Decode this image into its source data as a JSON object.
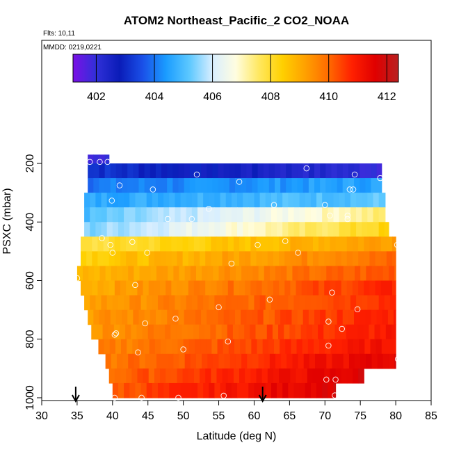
{
  "chart_data": {
    "type": "heatmap",
    "title": "ATOM2 Northeast_Pacific_2 CO2_NOAA",
    "flights_label": "Flts: 10,11",
    "date_label": "MMDD: 0219,0221",
    "xlabel": "Latitude (deg N)",
    "ylabel": "PSXC (mbar)",
    "xlim": [
      30,
      85
    ],
    "ylim": [
      1010,
      0
    ],
    "x_ticks": [
      30,
      35,
      40,
      45,
      50,
      55,
      60,
      65,
      70,
      75,
      80,
      85
    ],
    "y_ticks": [
      200,
      400,
      600,
      800,
      1000
    ],
    "colorbar": {
      "range": [
        401.2,
        412.4
      ],
      "ticks": [
        402,
        404,
        406,
        408,
        410,
        412
      ],
      "colors": [
        "#7a10e6",
        "#3030d8",
        "#0a1cb8",
        "#1a50e8",
        "#1a9cff",
        "#5cc8ff",
        "#d8eeff",
        "#fffde0",
        "#ffe860",
        "#ffd000",
        "#ffa000",
        "#ff6a00",
        "#ff2000",
        "#e00000",
        "#b82020"
      ]
    },
    "colorbar_lines": [
      402,
      404,
      406,
      408,
      410,
      412
    ],
    "bands": [
      {
        "p0": 170,
        "p1": 200,
        "lat0": 36.5,
        "lat1": 39.5,
        "v0": 401.8,
        "v1": 402.2
      },
      {
        "p0": 200,
        "p1": 250,
        "lat0": 36.5,
        "lat1": 78,
        "v0": 403.2,
        "v1": 402.0
      },
      {
        "p0": 250,
        "p1": 300,
        "lat0": 36.5,
        "lat1": 78,
        "v0": 404.0,
        "v1": 404.6
      },
      {
        "p0": 300,
        "p1": 350,
        "lat0": 36,
        "lat1": 78.5,
        "v0": 404.6,
        "v1": 405.2
      },
      {
        "p0": 350,
        "p1": 400,
        "lat0": 36,
        "lat1": 78.5,
        "v0": 405.0,
        "v1": 407.5
      },
      {
        "p0": 400,
        "p1": 450,
        "lat0": 36,
        "lat1": 79,
        "v0": 405.4,
        "v1": 408.3
      },
      {
        "p0": 450,
        "p1": 500,
        "lat0": 35.5,
        "lat1": 80,
        "v0": 407.8,
        "v1": 409.4
      },
      {
        "p0": 500,
        "p1": 550,
        "lat0": 35.5,
        "lat1": 80,
        "v0": 408.4,
        "v1": 410.0
      },
      {
        "p0": 550,
        "p1": 600,
        "lat0": 35,
        "lat1": 80,
        "v0": 408.8,
        "v1": 410.3
      },
      {
        "p0": 600,
        "p1": 650,
        "lat0": 35.5,
        "lat1": 80,
        "v0": 409.0,
        "v1": 410.8
      },
      {
        "p0": 650,
        "p1": 700,
        "lat0": 36,
        "lat1": 80,
        "v0": 409.2,
        "v1": 410.8
      },
      {
        "p0": 700,
        "p1": 750,
        "lat0": 36.5,
        "lat1": 80,
        "v0": 409.3,
        "v1": 410.9
      },
      {
        "p0": 750,
        "p1": 800,
        "lat0": 37,
        "lat1": 80,
        "v0": 409.4,
        "v1": 411.0
      },
      {
        "p0": 800,
        "p1": 850,
        "lat0": 38,
        "lat1": 80,
        "v0": 409.6,
        "v1": 411.2
      },
      {
        "p0": 850,
        "p1": 900,
        "lat0": 39,
        "lat1": 80,
        "v0": 409.8,
        "v1": 411.6
      },
      {
        "p0": 900,
        "p1": 950,
        "lat0": 39.5,
        "lat1": 75.5,
        "v0": 410.0,
        "v1": 411.7
      },
      {
        "p0": 950,
        "p1": 1000,
        "lat0": 40,
        "lat1": 71.5,
        "v0": 410.2,
        "v1": 411.8
      }
    ],
    "points": [
      {
        "lat": 36.8,
        "p": 195
      },
      {
        "lat": 38.2,
        "p": 195
      },
      {
        "lat": 39.3,
        "p": 195
      },
      {
        "lat": 67.4,
        "p": 217
      },
      {
        "lat": 51.9,
        "p": 238
      },
      {
        "lat": 74.2,
        "p": 238
      },
      {
        "lat": 77.8,
        "p": 250
      },
      {
        "lat": 57.9,
        "p": 263
      },
      {
        "lat": 41.0,
        "p": 275
      },
      {
        "lat": 45.7,
        "p": 289
      },
      {
        "lat": 73.5,
        "p": 289
      },
      {
        "lat": 74.0,
        "p": 289
      },
      {
        "lat": 39.9,
        "p": 327
      },
      {
        "lat": 62.8,
        "p": 342
      },
      {
        "lat": 70.0,
        "p": 342
      },
      {
        "lat": 53.6,
        "p": 355
      },
      {
        "lat": 70.7,
        "p": 378
      },
      {
        "lat": 73.2,
        "p": 378
      },
      {
        "lat": 47.8,
        "p": 390
      },
      {
        "lat": 51.2,
        "p": 390
      },
      {
        "lat": 73.2,
        "p": 390
      },
      {
        "lat": 38.5,
        "p": 455
      },
      {
        "lat": 42.8,
        "p": 468
      },
      {
        "lat": 64.4,
        "p": 465
      },
      {
        "lat": 39.7,
        "p": 478
      },
      {
        "lat": 60.5,
        "p": 478
      },
      {
        "lat": 80.2,
        "p": 478
      },
      {
        "lat": 40.0,
        "p": 505
      },
      {
        "lat": 44.9,
        "p": 505
      },
      {
        "lat": 66.2,
        "p": 505
      },
      {
        "lat": 56.8,
        "p": 542
      },
      {
        "lat": 35.0,
        "p": 592
      },
      {
        "lat": 43.2,
        "p": 615
      },
      {
        "lat": 71.0,
        "p": 641
      },
      {
        "lat": 62.2,
        "p": 665
      },
      {
        "lat": 55.0,
        "p": 691
      },
      {
        "lat": 74.6,
        "p": 698
      },
      {
        "lat": 48.9,
        "p": 730
      },
      {
        "lat": 44.6,
        "p": 746
      },
      {
        "lat": 70.5,
        "p": 740
      },
      {
        "lat": 72.4,
        "p": 765
      },
      {
        "lat": 40.3,
        "p": 785
      },
      {
        "lat": 40.5,
        "p": 780
      },
      {
        "lat": 56.3,
        "p": 808
      },
      {
        "lat": 70.5,
        "p": 822
      },
      {
        "lat": 50.0,
        "p": 835
      },
      {
        "lat": 43.6,
        "p": 845
      },
      {
        "lat": 80.3,
        "p": 868
      },
      {
        "lat": 70.2,
        "p": 938
      },
      {
        "lat": 71.5,
        "p": 938
      },
      {
        "lat": 40.3,
        "p": 1000
      },
      {
        "lat": 44.1,
        "p": 1000
      },
      {
        "lat": 49.3,
        "p": 1000
      },
      {
        "lat": 55.7,
        "p": 993
      },
      {
        "lat": 71.4,
        "p": 992
      }
    ],
    "arrows": [
      {
        "lat": 34.8
      },
      {
        "lat": 61.2
      }
    ]
  }
}
